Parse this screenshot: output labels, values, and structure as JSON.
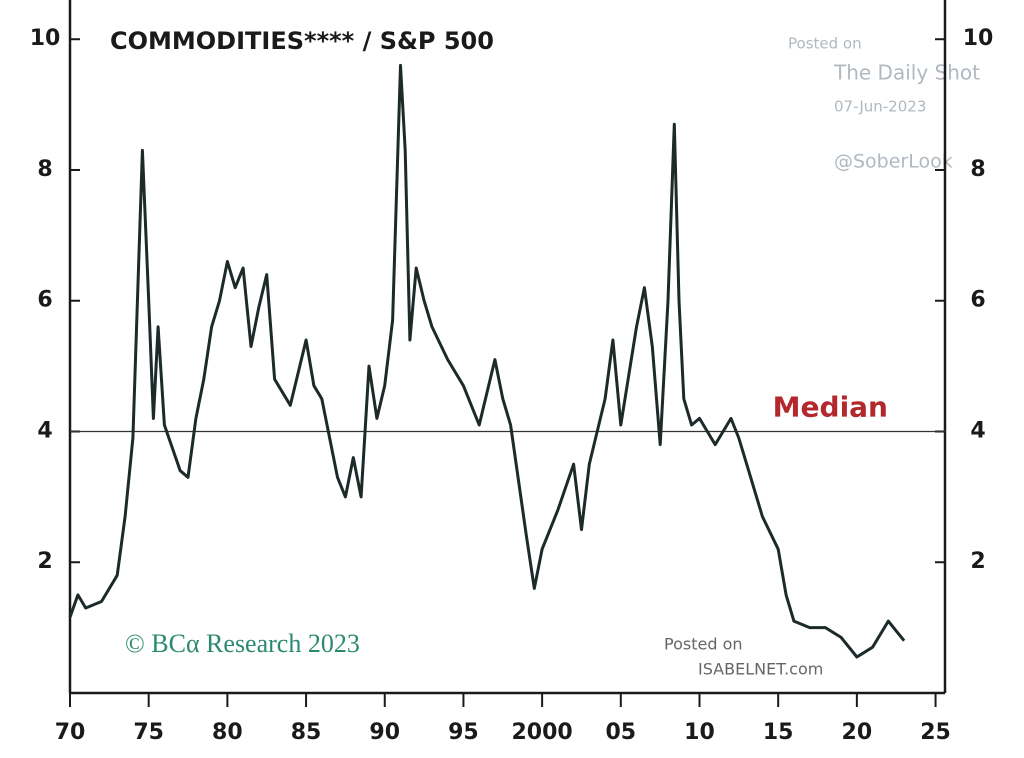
{
  "chart_data": {
    "type": "line",
    "title": "COMMODITIES**** / S&P 500",
    "x": [
      1970,
      1970.5,
      1971,
      1972,
      1973,
      1973.5,
      1974,
      1974.6,
      1975,
      1975.3,
      1975.6,
      1976,
      1977,
      1977.5,
      1978,
      1978.5,
      1979,
      1979.5,
      1980,
      1980.5,
      1981,
      1981.5,
      1982,
      1982.5,
      1983,
      1984,
      1985,
      1985.5,
      1986,
      1987,
      1987.5,
      1988,
      1988.5,
      1989,
      1989.5,
      1990,
      1990.5,
      1991,
      1991.3,
      1991.6,
      1992,
      1992.5,
      1993,
      1994,
      1995,
      1996,
      1997,
      1997.5,
      1998,
      1999,
      1999.5,
      2000,
      2001,
      2002,
      2002.5,
      2003,
      2004,
      2004.5,
      2005,
      2006,
      2006.5,
      2007,
      2007.5,
      2008,
      2008.4,
      2008.7,
      2009,
      2009.5,
      2010,
      2011,
      2012,
      2012.5,
      2013,
      2014,
      2015,
      2015.5,
      2016,
      2017,
      2018,
      2019,
      2020,
      2021,
      2022,
      2022.5,
      2023
    ],
    "values": [
      1.16,
      1.5,
      1.3,
      1.4,
      1.8,
      2.7,
      3.9,
      8.3,
      6.0,
      4.2,
      5.6,
      4.1,
      3.4,
      3.3,
      4.2,
      4.8,
      5.6,
      6.0,
      6.6,
      6.2,
      6.5,
      5.3,
      5.9,
      6.4,
      4.8,
      4.4,
      5.4,
      4.7,
      4.5,
      3.3,
      3.0,
      3.6,
      3.0,
      5.0,
      4.2,
      4.7,
      5.7,
      9.6,
      8.3,
      5.4,
      6.5,
      6.0,
      5.6,
      5.1,
      4.7,
      4.1,
      5.1,
      4.5,
      4.1,
      2.4,
      1.6,
      2.2,
      2.8,
      3.5,
      2.5,
      3.5,
      4.5,
      5.4,
      4.1,
      5.6,
      6.2,
      5.3,
      3.8,
      6.0,
      8.7,
      6.0,
      4.5,
      4.1,
      4.2,
      3.8,
      4.2,
      3.9,
      3.5,
      2.7,
      2.2,
      1.5,
      1.1,
      1.0,
      1.0,
      0.85,
      0.55,
      0.7,
      1.1,
      0.95,
      0.8
    ],
    "color": "#1c2a2a",
    "xlim": [
      1970,
      2025.6
    ],
    "xticks": [
      {
        "value": 1970,
        "label": "70"
      },
      {
        "value": 1975,
        "label": "75"
      },
      {
        "value": 1980,
        "label": "80"
      },
      {
        "value": 1985,
        "label": "85"
      },
      {
        "value": 1990,
        "label": "90"
      },
      {
        "value": 1995,
        "label": "95"
      },
      2000,
      {
        "value": 2005,
        "label": "05"
      },
      {
        "value": 2010,
        "label": "10"
      },
      {
        "value": 2015,
        "label": "15"
      },
      {
        "value": 2020,
        "label": "20"
      },
      {
        "value": 2025,
        "label": "25"
      }
    ],
    "ylim": [
      0,
      10.6
    ],
    "yticks": [
      2,
      4,
      6,
      8,
      10
    ],
    "annotations": [
      {
        "text": "Median",
        "y": 4,
        "color": "#b3282d"
      }
    ],
    "watermarks": [
      "Posted on",
      "The Daily Shot",
      "07-Jun-2023",
      "@SoberLook",
      "© BCα Research 2023",
      "Posted on",
      "ISABELNET.com"
    ]
  }
}
